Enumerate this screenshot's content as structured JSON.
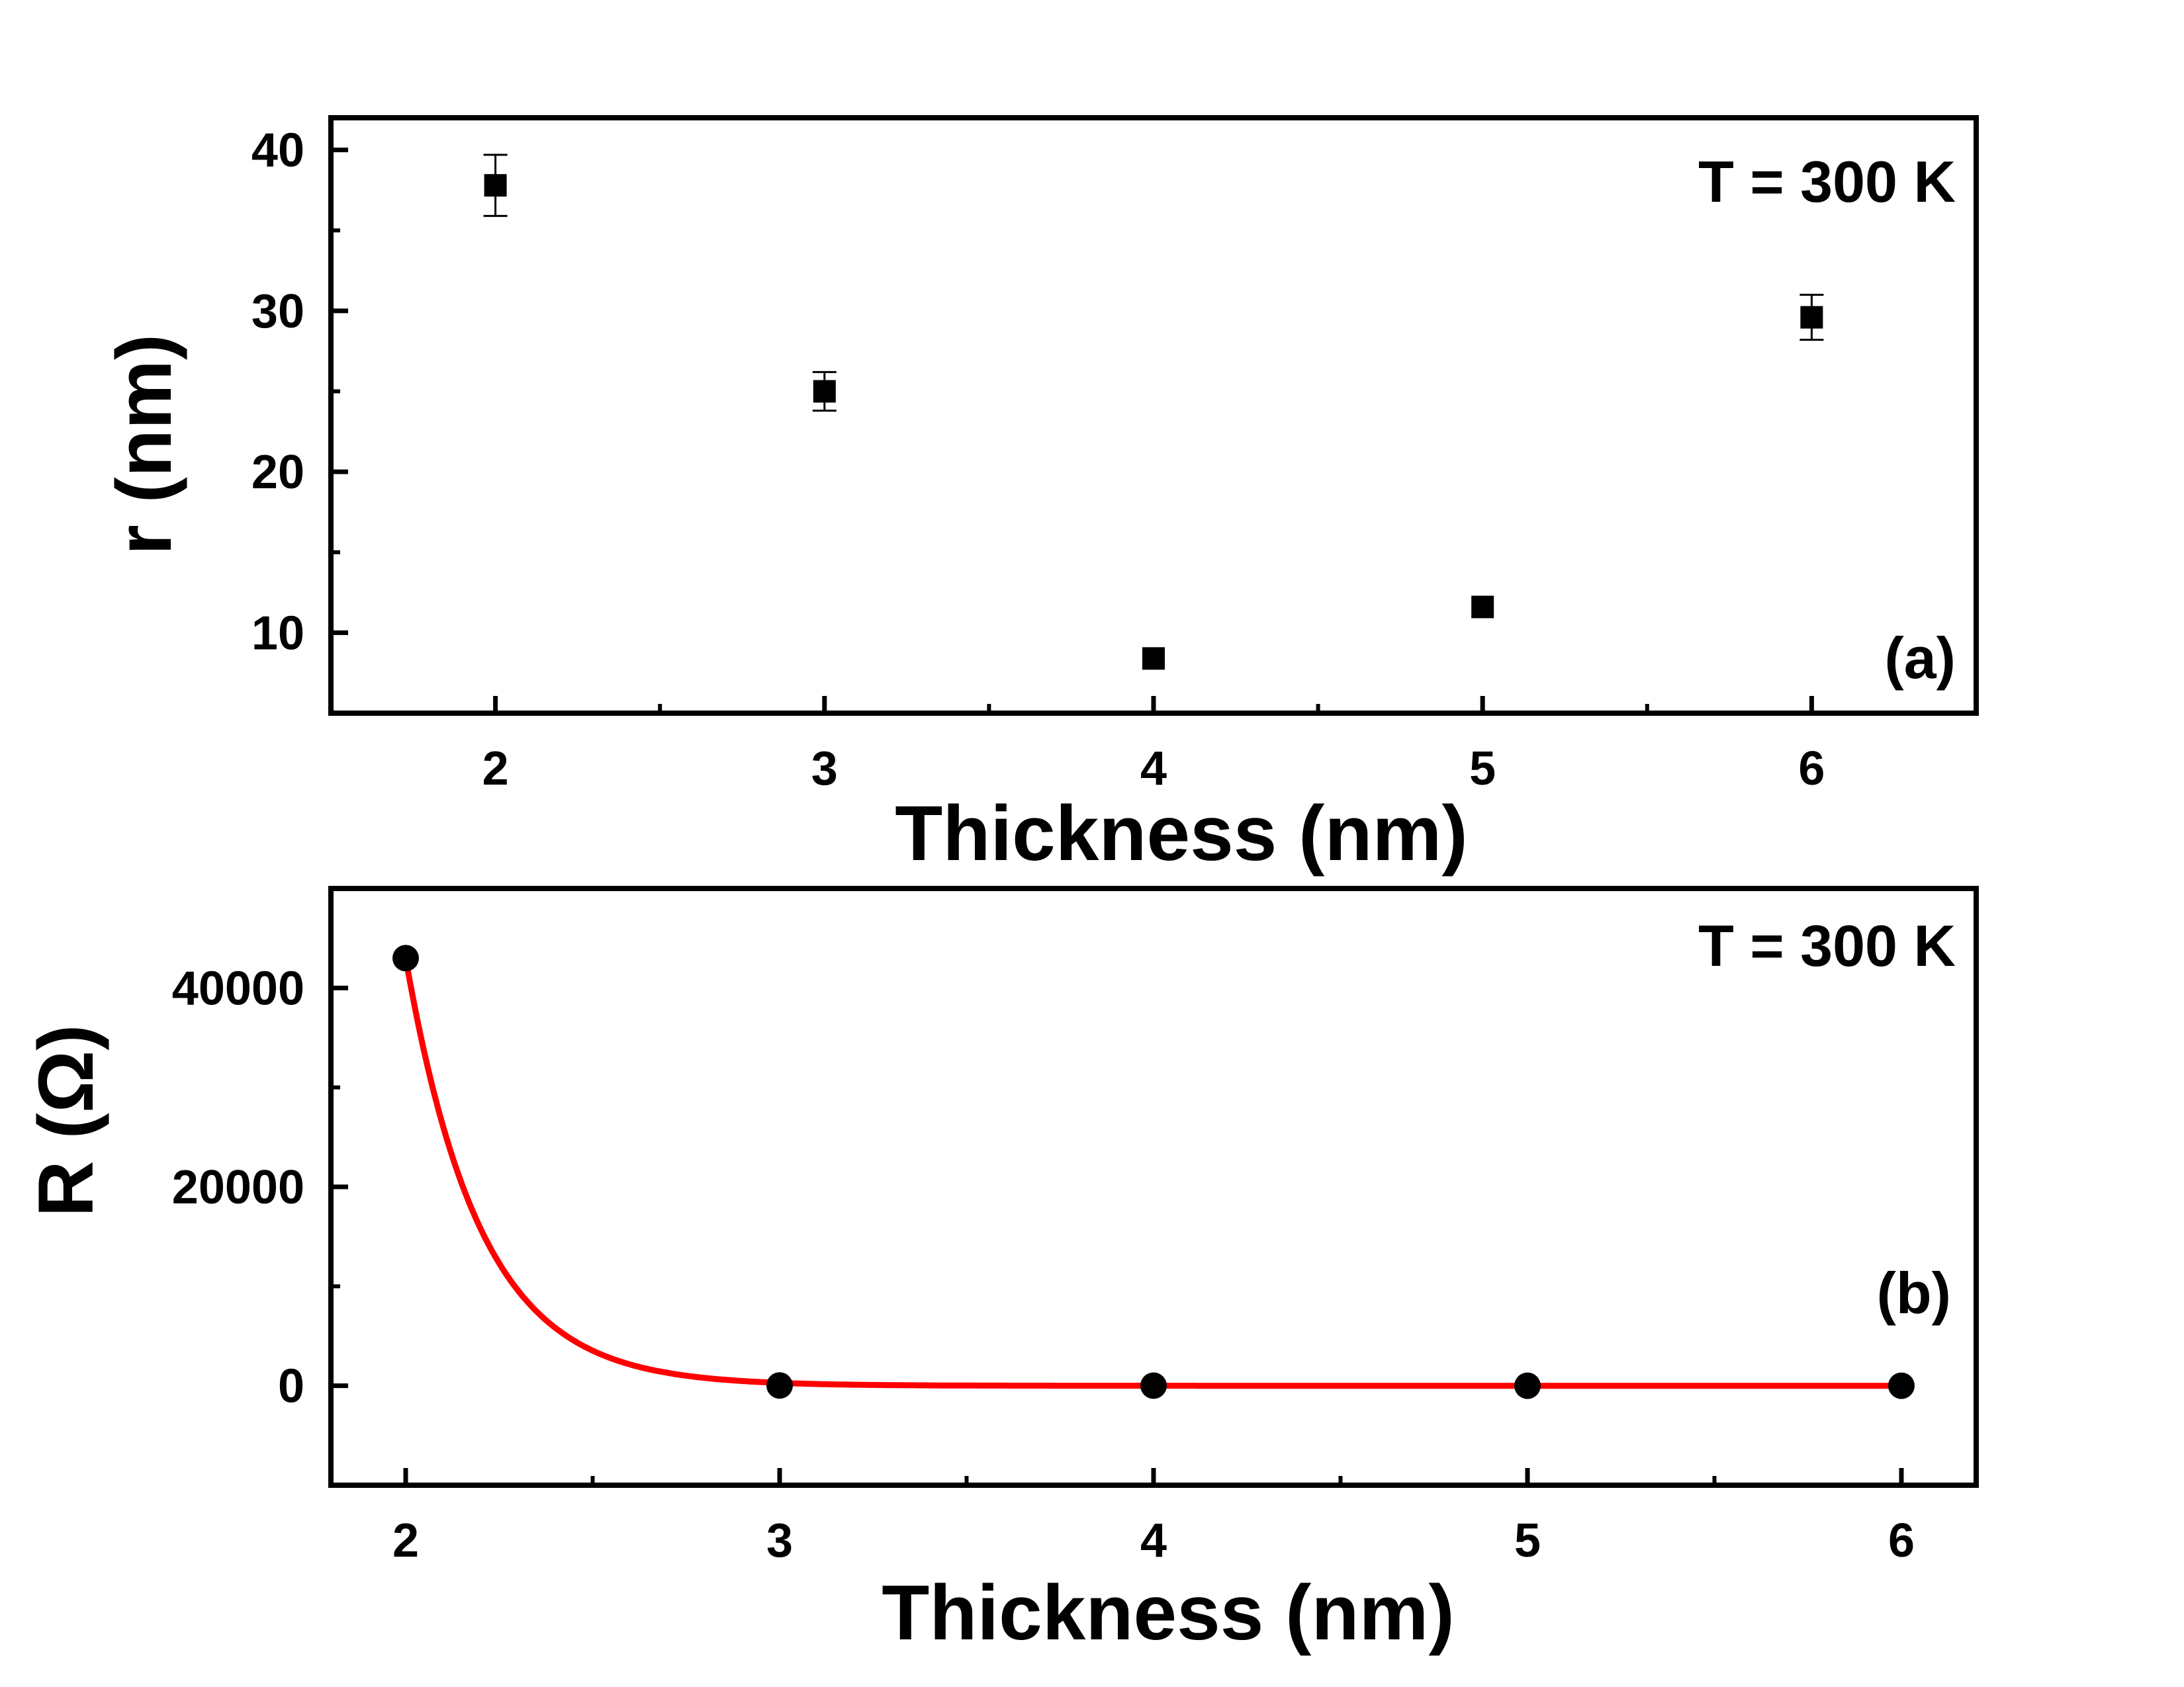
{
  "chart_data": [
    {
      "type": "scatter",
      "panel_label": "(a)",
      "annotation": "T = 300 K",
      "xlabel": "Thickness (nm)",
      "ylabel": "r (nm)",
      "xlim": [
        1.5,
        6.5
      ],
      "ylim": [
        5,
        42
      ],
      "xticks": [
        2,
        3,
        4,
        5,
        6
      ],
      "xtick_labels": [
        "2",
        "3",
        "4",
        "5",
        "6"
      ],
      "xminor": [
        2.5,
        3.5,
        4.5,
        5.5
      ],
      "yticks": [
        10,
        20,
        30,
        40
      ],
      "ytick_labels": [
        "10",
        "20",
        "30",
        "40"
      ],
      "yminor": [
        15,
        25,
        35
      ],
      "marker": "square",
      "color": "#000000",
      "series": [
        {
          "x": [
            2,
            3,
            4,
            5,
            6
          ],
          "y": [
            37.8,
            25.0,
            8.4,
            11.6,
            29.6
          ],
          "yerr": [
            1.9,
            1.2,
            0,
            0,
            1.4
          ]
        }
      ]
    },
    {
      "type": "scatter",
      "panel_label": "(b)",
      "annotation": "T = 300 K",
      "xlabel": "Thickness (nm)",
      "ylabel": "R (Ω)",
      "xlim": [
        1.8,
        6.2
      ],
      "ylim": [
        -10000,
        50000
      ],
      "xticks": [
        2,
        3,
        4,
        5,
        6
      ],
      "xtick_labels": [
        "2",
        "3",
        "4",
        "5",
        "6"
      ],
      "xminor": [
        2.5,
        3.5,
        4.5,
        5.5
      ],
      "yticks": [
        0,
        20000,
        40000
      ],
      "ytick_labels": [
        "0",
        "20000",
        "40000"
      ],
      "yminor": [
        10000,
        30000
      ],
      "marker": "circle",
      "color": "#000000",
      "fit_color": "#ff0000",
      "series": [
        {
          "x": [
            2,
            3,
            4,
            5,
            6
          ],
          "y": [
            43000,
            30,
            10,
            5,
            3
          ]
        }
      ],
      "fit": {
        "form": "exponential decay",
        "x0": 2,
        "y0": 43000,
        "decay_length_nm": 0.2
      }
    }
  ]
}
